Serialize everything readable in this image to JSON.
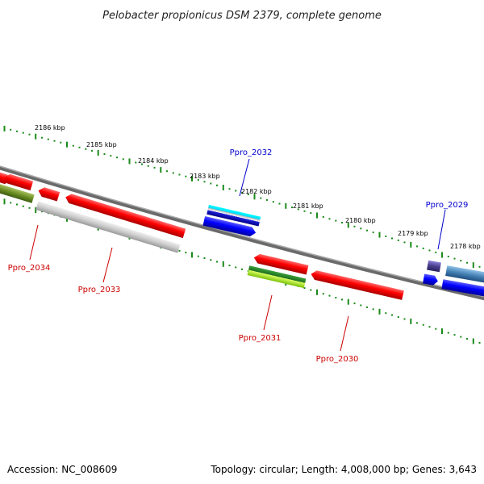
{
  "title": "Pelobacter propionicus DSM 2379, complete genome",
  "footer": {
    "accession": "Accession: NC_008609",
    "summary": "Topology: circular; Length: 4,008,000 bp; Genes: 3,643"
  },
  "ruler_labels": [
    "2186 kbp",
    "2185 kbp",
    "2184 kbp",
    "2183 kbp",
    "2182 kbp",
    "2181 kbp",
    "2180 kbp",
    "2179 kbp",
    "2178 kbp"
  ],
  "gene_labels": [
    {
      "id": "Ppro_2032",
      "color": "#0000cc"
    },
    {
      "id": "Ppro_2029",
      "color": "#0000cc"
    },
    {
      "id": "Ppro_2034",
      "color": "#cc0000"
    },
    {
      "id": "Ppro_2033",
      "color": "#cc0000"
    },
    {
      "id": "Ppro_2031",
      "color": "#cc0000"
    },
    {
      "id": "Ppro_2030",
      "color": "#cc0000"
    }
  ],
  "colors": {
    "backbone": "#777777",
    "ruler_dot": "#1a8a1a",
    "forward_strand": "#0000cc",
    "reverse_strand": "#cc0000"
  }
}
